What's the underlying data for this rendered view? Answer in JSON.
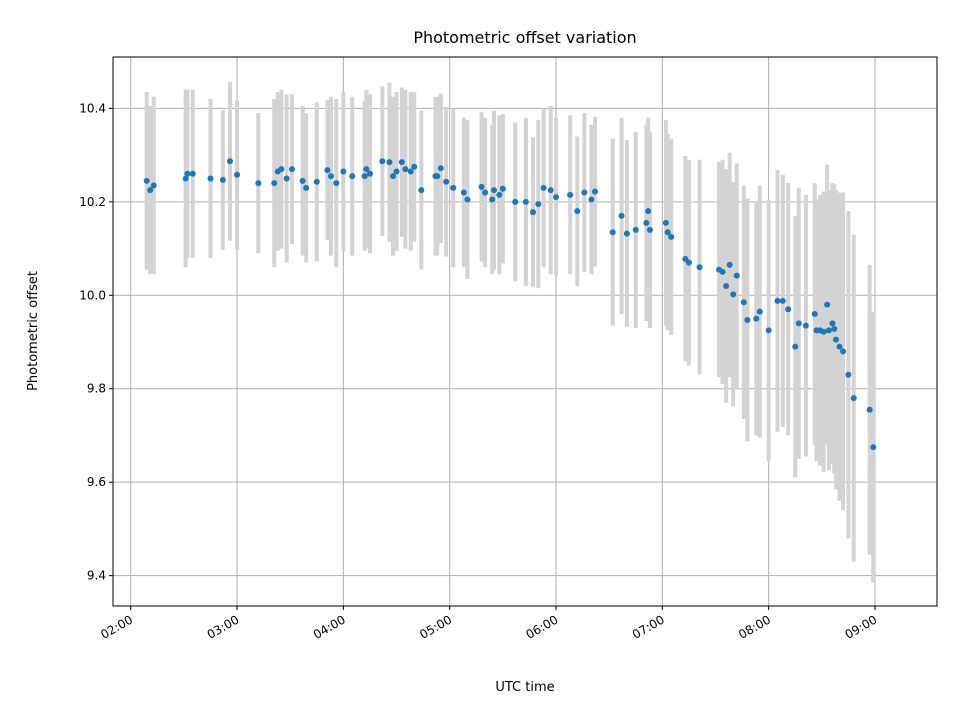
{
  "chart_data": {
    "type": "scatter",
    "title": "Photometric offset variation",
    "xlabel": "UTC time",
    "ylabel": "Photometric offset",
    "xlim": [
      "01:50",
      "09:35"
    ],
    "ylim": [
      9.335,
      10.51
    ],
    "grid": true,
    "x_ticks": [
      "02:00",
      "03:00",
      "04:00",
      "05:00",
      "06:00",
      "07:00",
      "08:00",
      "09:00"
    ],
    "y_ticks": [
      9.4,
      9.6,
      9.8,
      10.0,
      10.2,
      10.4
    ],
    "marker_color": "#1f77b4",
    "errorbar_color": "#d3d3d3",
    "series": [
      {
        "x": [
          "02:09",
          "02:11",
          "02:13",
          "02:31",
          "02:32",
          "02:35",
          "02:45",
          "02:52",
          "02:56",
          "03:00",
          "03:12",
          "03:21",
          "03:23",
          "03:25",
          "03:28",
          "03:31",
          "03:37",
          "03:39",
          "03:45",
          "03:51",
          "03:53",
          "03:56",
          "04:00",
          "04:05",
          "04:12",
          "04:13",
          "04:15",
          "04:22",
          "04:26",
          "04:28",
          "04:30",
          "04:33",
          "04:35",
          "04:38",
          "04:40",
          "04:44",
          "04:52",
          "04:53",
          "04:55",
          "04:58",
          "05:02",
          "05:08",
          "05:10",
          "05:18",
          "05:20",
          "05:24",
          "05:25",
          "05:28",
          "05:30",
          "05:37",
          "05:43",
          "05:47",
          "05:50",
          "05:53",
          "05:57",
          "06:00",
          "06:08",
          "06:12",
          "06:16",
          "06:20",
          "06:22",
          "06:32",
          "06:37",
          "06:40",
          "06:45",
          "06:51",
          "06:52",
          "06:53",
          "07:02",
          "07:03",
          "07:05",
          "07:13",
          "07:15",
          "07:21",
          "07:32",
          "07:34",
          "07:36",
          "07:38",
          "07:40",
          "07:42",
          "07:46",
          "07:48",
          "07:53",
          "07:55",
          "08:00",
          "08:05",
          "08:08",
          "08:11",
          "08:15",
          "08:17",
          "08:21",
          "08:26",
          "08:27",
          "08:29",
          "08:31",
          "08:33",
          "08:34",
          "08:36",
          "08:37",
          "08:38",
          "08:40",
          "08:42",
          "08:45",
          "08:48",
          "08:57",
          "08:59"
        ],
        "y": [
          10.245,
          10.225,
          10.235,
          10.25,
          10.26,
          10.26,
          10.25,
          10.247,
          10.287,
          10.258,
          10.24,
          10.24,
          10.265,
          10.27,
          10.25,
          10.27,
          10.245,
          10.23,
          10.243,
          10.268,
          10.255,
          10.24,
          10.265,
          10.255,
          10.255,
          10.27,
          10.26,
          10.287,
          10.285,
          10.255,
          10.265,
          10.285,
          10.27,
          10.265,
          10.275,
          10.225,
          10.255,
          10.255,
          10.272,
          10.243,
          10.23,
          10.22,
          10.205,
          10.232,
          10.22,
          10.205,
          10.225,
          10.215,
          10.228,
          10.2,
          10.2,
          10.178,
          10.195,
          10.23,
          10.225,
          10.21,
          10.215,
          10.18,
          10.22,
          10.205,
          10.222,
          10.135,
          10.17,
          10.132,
          10.14,
          10.155,
          10.18,
          10.14,
          10.155,
          10.135,
          10.125,
          10.078,
          10.07,
          10.06,
          10.055,
          10.05,
          10.02,
          10.065,
          10.002,
          10.042,
          9.985,
          9.947,
          9.95,
          9.965,
          9.925,
          9.988,
          9.988,
          9.97,
          9.89,
          9.94,
          9.935,
          9.96,
          9.925,
          9.925,
          9.922,
          9.98,
          9.925,
          9.94,
          9.928,
          9.905,
          9.89,
          9.88,
          9.83,
          9.78,
          9.755,
          9.675
        ],
        "err": [
          0.19,
          0.18,
          0.19,
          0.19,
          0.18,
          0.18,
          0.17,
          0.15,
          0.17,
          0.16,
          0.15,
          0.18,
          0.17,
          0.17,
          0.18,
          0.16,
          0.16,
          0.16,
          0.17,
          0.15,
          0.17,
          0.18,
          0.17,
          0.17,
          0.16,
          0.17,
          0.17,
          0.16,
          0.17,
          0.17,
          0.17,
          0.16,
          0.17,
          0.17,
          0.16,
          0.17,
          0.17,
          0.17,
          0.16,
          0.16,
          0.17,
          0.16,
          0.17,
          0.16,
          0.16,
          0.16,
          0.17,
          0.17,
          0.16,
          0.17,
          0.18,
          0.16,
          0.18,
          0.17,
          0.18,
          0.17,
          0.17,
          0.16,
          0.17,
          0.16,
          0.16,
          0.2,
          0.21,
          0.2,
          0.21,
          0.21,
          0.2,
          0.21,
          0.22,
          0.21,
          0.21,
          0.22,
          0.22,
          0.23,
          0.23,
          0.24,
          0.25,
          0.24,
          0.24,
          0.24,
          0.25,
          0.26,
          0.25,
          0.27,
          0.28,
          0.28,
          0.27,
          0.27,
          0.28,
          0.29,
          0.28,
          0.28,
          0.28,
          0.29,
          0.3,
          0.3,
          0.3,
          0.3,
          0.31,
          0.32,
          0.33,
          0.34,
          0.35,
          0.35,
          0.31,
          0.29
        ]
      }
    ]
  }
}
